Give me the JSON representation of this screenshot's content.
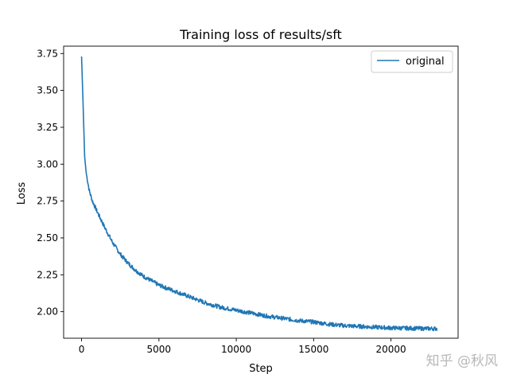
{
  "chart_data": {
    "type": "line",
    "title": "Training loss of results/sft",
    "xlabel": "Step",
    "ylabel": "Loss",
    "xlim": [
      -1160,
      24340
    ],
    "ylim": [
      1.82,
      3.8
    ],
    "xticks": [
      0,
      5000,
      10000,
      15000,
      20000
    ],
    "xtick_labels": [
      "0",
      "5000",
      "10000",
      "15000",
      "20000"
    ],
    "yticks": [
      2.0,
      2.25,
      2.5,
      2.75,
      3.0,
      3.25,
      3.5,
      3.75
    ],
    "ytick_labels": [
      "2.00",
      "2.25",
      "2.50",
      "2.75",
      "3.00",
      "3.25",
      "3.50",
      "3.75"
    ],
    "grid": false,
    "legend": "upper-right",
    "series": [
      {
        "name": "original",
        "color": "#1f77b4",
        "x": [
          0,
          100,
          200,
          300,
          400,
          500,
          700,
          1000,
          1500,
          2000,
          2500,
          3000,
          3500,
          4000,
          5000,
          6000,
          7000,
          8000,
          9000,
          10000,
          11000,
          12000,
          13000,
          14000,
          15000,
          16000,
          17000,
          18000,
          19000,
          20000,
          21000,
          22000,
          23000
        ],
        "y": [
          3.73,
          3.4,
          3.05,
          2.94,
          2.88,
          2.82,
          2.75,
          2.68,
          2.57,
          2.47,
          2.39,
          2.33,
          2.28,
          2.24,
          2.18,
          2.14,
          2.1,
          2.06,
          2.03,
          2.01,
          1.99,
          1.97,
          1.955,
          1.94,
          1.93,
          1.915,
          1.905,
          1.9,
          1.895,
          1.89,
          1.888,
          1.886,
          1.885
        ]
      }
    ]
  },
  "watermark": "知乎 @秋风"
}
